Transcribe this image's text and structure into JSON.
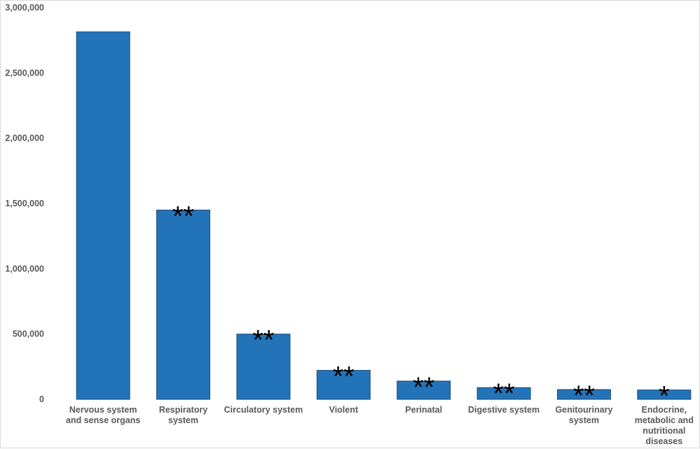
{
  "chart_data": {
    "type": "bar",
    "title": "",
    "xlabel": "",
    "ylabel": "",
    "categories": [
      "Nervous system and sense organs",
      "Respiratory system",
      "Circulatory system",
      "Violent",
      "Perinatal",
      "Digestive system",
      "Genitourinary system",
      "Endocrine, metabolic and nutritional diseases"
    ],
    "category_lines": [
      [
        "Nervous system",
        "and sense organs"
      ],
      [
        "Respiratory",
        "system"
      ],
      [
        "Circulatory system"
      ],
      [
        "Violent"
      ],
      [
        "Perinatal"
      ],
      [
        "Digestive system"
      ],
      [
        "Genitourinary",
        "system"
      ],
      [
        "Endocrine,",
        "metabolic and",
        "nutritional",
        "diseases"
      ]
    ],
    "values": [
      2815000,
      1450000,
      500000,
      222000,
      140000,
      90000,
      75000,
      72000
    ],
    "annotations": [
      "",
      "**",
      "**",
      "**",
      "**",
      "**",
      "**",
      "*"
    ],
    "ylim": [
      0,
      3000000
    ],
    "yticks": [
      0,
      500000,
      1000000,
      1500000,
      2000000,
      2500000,
      3000000
    ],
    "ytick_labels": [
      "0",
      "500,000",
      "1,000,000",
      "1,500,000",
      "2,000,000",
      "2,500,000",
      "3,000,000"
    ],
    "grid": false,
    "legend": "none",
    "bar_color": "#2373b9",
    "bar_edge_color": "#1f4e79"
  }
}
